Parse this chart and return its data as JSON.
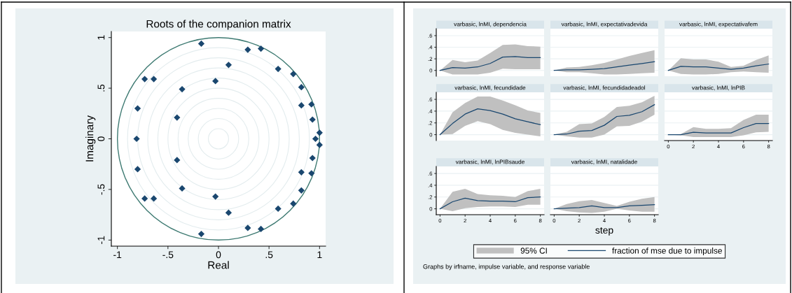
{
  "chart_data": [
    {
      "type": "scatter",
      "title": "Roots of the companion matrix",
      "xlabel": "Real",
      "ylabel": "Imaginary",
      "xlim": [
        -1.06,
        1.06
      ],
      "ylim": [
        -1.06,
        1.06
      ],
      "xticks": [
        -1,
        {
          "value": -0.5,
          "label": "-.5"
        },
        0,
        {
          "value": 0.5,
          "label": ".5"
        },
        1
      ],
      "yticks": [
        -1,
        {
          "value": -0.5,
          "label": "-.5"
        },
        0,
        {
          "value": 0.5,
          "label": ".5"
        },
        1
      ],
      "marker": "diamond",
      "series": [
        {
          "color": "#1a476f",
          "x": [
            -0.17,
            0.29,
            0.42,
            0.1,
            0.59,
            0.74,
            0.82,
            0.82,
            0.92,
            0.93,
            1.0,
            0.96,
            1.0,
            -0.03,
            -0.36,
            -0.73,
            -0.64,
            -0.8,
            -0.81,
            -0.41,
            -0.17,
            0.29,
            0.42,
            0.1,
            0.59,
            0.74,
            0.82,
            0.82,
            0.92,
            0.93,
            -0.03,
            -0.36,
            -0.73,
            -0.64,
            -0.8,
            -0.41
          ],
          "values": [
            0.94,
            0.88,
            0.89,
            0.73,
            0.69,
            0.64,
            0.51,
            0.33,
            0.34,
            0.19,
            0.06,
            0,
            -0.06,
            0.57,
            0.49,
            0.59,
            0.59,
            0.3,
            0,
            0.21,
            -0.94,
            -0.88,
            -0.89,
            -0.73,
            -0.69,
            -0.64,
            -0.51,
            -0.33,
            -0.34,
            -0.19,
            -0.57,
            -0.49,
            -0.59,
            -0.59,
            -0.3,
            -0.21
          ]
        }
      ]
    },
    {
      "type": "line",
      "title": "varbasic, lnMI, dependencia",
      "x": [
        0,
        1,
        2,
        3,
        4,
        5,
        6,
        7,
        8
      ],
      "xlim": [
        -0.3,
        8.3
      ],
      "ylim": [
        -0.1,
        0.72
      ],
      "xticks": [
        0,
        2,
        4,
        6,
        8
      ],
      "yticks": [
        0,
        {
          "value": 0.2,
          "label": ".2"
        },
        {
          "value": 0.4,
          "label": ".4"
        },
        {
          "value": 0.6,
          "label": ".6"
        }
      ],
      "grid": "y",
      "tick_labels": "y",
      "series": [
        {
          "color": "#1a476f",
          "values": [
            0,
            0.05,
            0.04,
            0.06,
            0.12,
            0.23,
            0.24,
            0.22,
            0.22
          ],
          "lower": [
            0,
            -0.07,
            -0.07,
            -0.07,
            -0.04,
            0.03,
            0.02,
            0.02,
            0.02
          ],
          "upper": [
            0,
            0.18,
            0.14,
            0.17,
            0.3,
            0.44,
            0.45,
            0.42,
            0.41
          ]
        }
      ]
    },
    {
      "type": "line",
      "title": "varbasic, lnMI, expectativadevida",
      "x": [
        0,
        1,
        2,
        3,
        4,
        5,
        6,
        7,
        8
      ],
      "xlim": [
        -0.3,
        8.3
      ],
      "ylim": [
        -0.1,
        0.72
      ],
      "xticks": [
        0,
        2,
        4,
        6,
        8
      ],
      "yticks": [
        0,
        0.2,
        0.4,
        0.6
      ],
      "grid": "y",
      "tick_labels": false,
      "series": [
        {
          "color": "#1a476f",
          "values": [
            0,
            0.01,
            0.01,
            0.02,
            0.03,
            0.06,
            0.09,
            0.12,
            0.15
          ],
          "lower": [
            0,
            -0.03,
            -0.03,
            -0.05,
            -0.07,
            -0.07,
            -0.06,
            -0.05,
            -0.04
          ],
          "upper": [
            0,
            0.05,
            0.06,
            0.09,
            0.13,
            0.19,
            0.25,
            0.3,
            0.35
          ]
        }
      ]
    },
    {
      "type": "line",
      "title": "varbasic, lnMI, expectativafem",
      "x": [
        0,
        1,
        2,
        3,
        4,
        5,
        6,
        7,
        8
      ],
      "xlim": [
        -0.3,
        8.3
      ],
      "ylim": [
        -0.1,
        0.72
      ],
      "xticks": [
        0,
        2,
        4,
        6,
        8
      ],
      "yticks": [
        0,
        0.2,
        0.4,
        0.6
      ],
      "grid": "y",
      "tick_labels": false,
      "series": [
        {
          "color": "#1a476f",
          "values": [
            0,
            0.07,
            0.06,
            0.06,
            0.04,
            0.02,
            0.04,
            0.08,
            0.11
          ],
          "lower": [
            0,
            -0.06,
            -0.07,
            -0.07,
            -0.06,
            -0.03,
            -0.02,
            -0.03,
            -0.04
          ],
          "upper": [
            0,
            0.21,
            0.19,
            0.19,
            0.15,
            0.06,
            0.08,
            0.18,
            0.26
          ]
        }
      ]
    },
    {
      "type": "line",
      "title": "varbasic, lnMI, fecundidade",
      "x": [
        0,
        1,
        2,
        3,
        4,
        5,
        6,
        7,
        8
      ],
      "xlim": [
        -0.3,
        8.3
      ],
      "ylim": [
        -0.1,
        0.72
      ],
      "xticks": [
        0,
        2,
        4,
        6,
        8
      ],
      "yticks": [
        0,
        {
          "value": 0.2,
          "label": ".2"
        },
        {
          "value": 0.4,
          "label": ".4"
        },
        {
          "value": 0.6,
          "label": ".6"
        }
      ],
      "grid": "y",
      "tick_labels": "y",
      "series": [
        {
          "color": "#1a476f",
          "values": [
            0,
            0.19,
            0.35,
            0.44,
            0.41,
            0.35,
            0.27,
            0.22,
            0.17
          ],
          "lower": [
            0,
            0.01,
            0.15,
            0.23,
            0.18,
            0.08,
            0.03,
            0,
            -0.03
          ],
          "upper": [
            0,
            0.38,
            0.54,
            0.65,
            0.65,
            0.58,
            0.5,
            0.41,
            0.37
          ]
        }
      ]
    },
    {
      "type": "line",
      "title": "varbasic, lnMI, fecundidadeadol",
      "x": [
        0,
        1,
        2,
        3,
        4,
        5,
        6,
        7,
        8
      ],
      "xlim": [
        -0.3,
        8.3
      ],
      "ylim": [
        -0.1,
        0.72
      ],
      "xticks": [
        0,
        2,
        4,
        6,
        8
      ],
      "yticks": [
        0,
        0.2,
        0.4,
        0.6
      ],
      "grid": "y",
      "tick_labels": false,
      "series": [
        {
          "color": "#1a476f",
          "values": [
            0,
            0.01,
            0.06,
            0.07,
            0.16,
            0.31,
            0.33,
            0.39,
            0.51
          ],
          "lower": [
            0,
            -0.03,
            -0.05,
            -0.05,
            0,
            0.14,
            0.15,
            0.22,
            0.34
          ],
          "upper": [
            0,
            0.05,
            0.18,
            0.19,
            0.3,
            0.47,
            0.49,
            0.55,
            0.66
          ]
        }
      ]
    },
    {
      "type": "line",
      "title": "varbasic, lnMI, lnPIB",
      "x": [
        0,
        1,
        2,
        3,
        4,
        5,
        6,
        7,
        8
      ],
      "xlim": [
        -0.3,
        8.3
      ],
      "ylim": [
        -0.1,
        0.72
      ],
      "xticks": [
        0,
        2,
        4,
        6,
        8
      ],
      "yticks": [
        0,
        0.2,
        0.4,
        0.6
      ],
      "grid": "y",
      "tick_labels": "x",
      "series": [
        {
          "color": "#1a476f",
          "values": [
            0,
            0,
            0.04,
            0.03,
            0.03,
            0.03,
            0.12,
            0.19,
            0.19
          ],
          "lower": [
            0,
            -0.01,
            -0.04,
            -0.04,
            -0.04,
            -0.04,
            -0.01,
            0.04,
            0.05
          ],
          "upper": [
            0,
            0.01,
            0.13,
            0.1,
            0.1,
            0.11,
            0.25,
            0.34,
            0.34
          ]
        }
      ]
    },
    {
      "type": "line",
      "title": "varbasic, lnMI, lnPIBsaude",
      "x": [
        0,
        1,
        2,
        3,
        4,
        5,
        6,
        7,
        8
      ],
      "xlim": [
        -0.3,
        8.3
      ],
      "ylim": [
        -0.1,
        0.72
      ],
      "xticks": [
        0,
        2,
        4,
        6,
        8
      ],
      "yticks": [
        0,
        {
          "value": 0.2,
          "label": ".2"
        },
        {
          "value": 0.4,
          "label": ".4"
        },
        {
          "value": 0.6,
          "label": ".6"
        }
      ],
      "grid": "y",
      "series": [
        {
          "color": "#1a476f",
          "values": [
            0,
            0.12,
            0.18,
            0.14,
            0.13,
            0.13,
            0.12,
            0.19,
            0.2
          ],
          "lower": [
            0,
            -0.04,
            0.01,
            0.03,
            0.04,
            0.04,
            0.03,
            0.07,
            0.07
          ],
          "upper": [
            0,
            0.29,
            0.34,
            0.25,
            0.23,
            0.22,
            0.2,
            0.3,
            0.34
          ]
        }
      ]
    },
    {
      "type": "line",
      "title": "varbasic, lnMI, natalidade",
      "xlabel": "step",
      "x": [
        0,
        1,
        2,
        3,
        4,
        5,
        6,
        7,
        8
      ],
      "xlim": [
        -0.3,
        8.3
      ],
      "ylim": [
        -0.1,
        0.72
      ],
      "xticks": [
        0,
        2,
        4,
        6,
        8
      ],
      "yticks": [
        0,
        0.2,
        0.4,
        0.6
      ],
      "grid": "y",
      "tick_labels": "x",
      "legend": "bottom",
      "annotations": [
        "95% CI",
        "Graphs by irfname, impulse variable, and response variable"
      ],
      "series": [
        {
          "name": "fraction of mse due to impulse",
          "color": "#1a476f",
          "values": [
            0,
            0.01,
            0.02,
            0.05,
            0.02,
            0.02,
            0.05,
            0.06,
            0.07
          ],
          "lower": [
            0,
            -0.04,
            -0.06,
            -0.07,
            -0.05,
            0,
            -0.03,
            -0.05,
            -0.05
          ],
          "upper": [
            0,
            0.08,
            0.13,
            0.15,
            0.1,
            0.05,
            0.12,
            0.17,
            0.2
          ]
        }
      ]
    }
  ]
}
